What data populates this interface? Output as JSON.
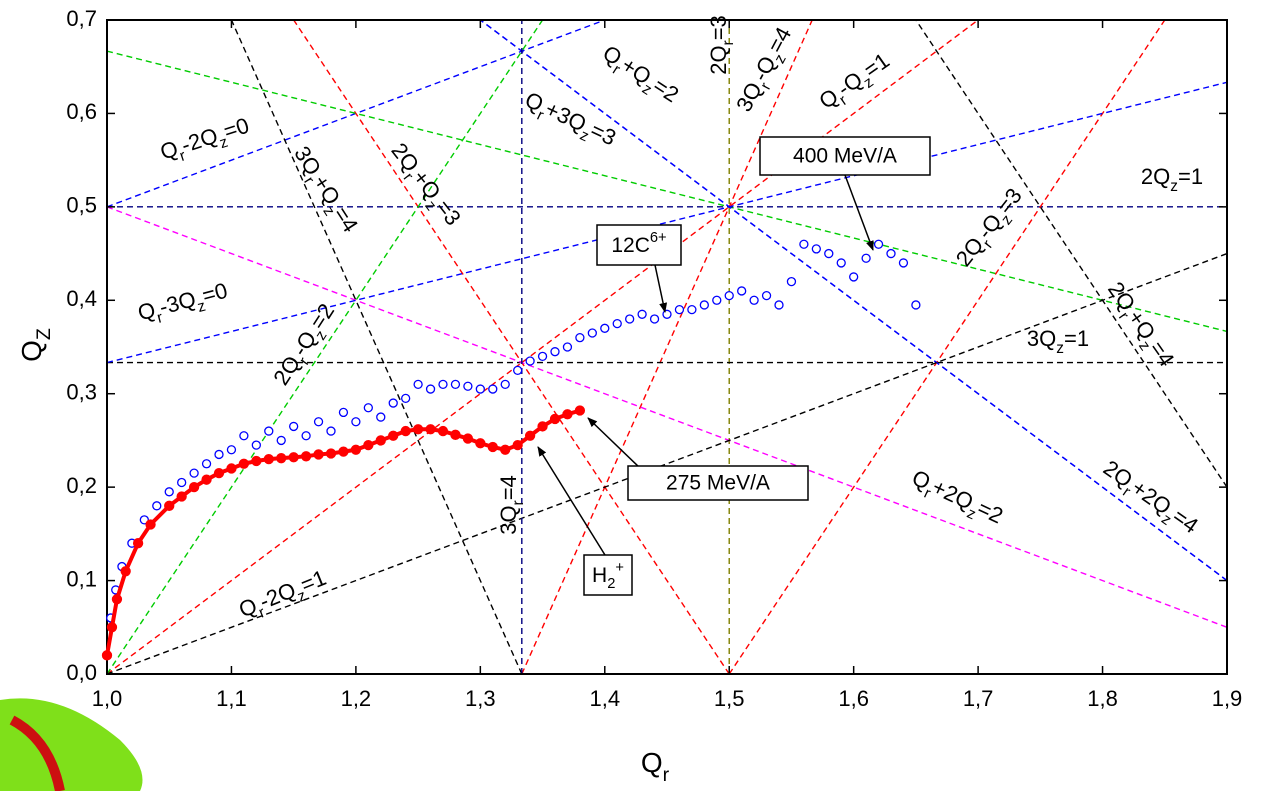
{
  "chart_data": {
    "type": "scatter",
    "x_label": "Qr",
    "y_label": "QZ",
    "xlim": [
      1.0,
      1.9
    ],
    "ylim": [
      0,
      0.7
    ],
    "xticks": [
      {
        "value": 1.0,
        "label": "1,0"
      },
      {
        "value": 1.1,
        "label": "1,1"
      },
      {
        "value": 1.2,
        "label": "1,2"
      },
      {
        "value": 1.3,
        "label": "1,3"
      },
      {
        "value": 1.4,
        "label": "1,4"
      },
      {
        "value": 1.5,
        "label": "1,5"
      },
      {
        "value": 1.6,
        "label": "1,6"
      },
      {
        "value": 1.7,
        "label": "1,7"
      },
      {
        "value": 1.8,
        "label": "1,8"
      },
      {
        "value": 1.9,
        "label": "1,9"
      }
    ],
    "yticks": [
      {
        "value": 0,
        "label": "0,0"
      },
      {
        "value": 0.1,
        "label": "0,1"
      },
      {
        "value": 0.2,
        "label": "0,2"
      },
      {
        "value": 0.3,
        "label": "0,3"
      },
      {
        "value": 0.4,
        "label": "0,4"
      },
      {
        "value": 0.5,
        "label": "0,5"
      },
      {
        "value": 0.6,
        "label": "0,6"
      },
      {
        "value": 0.7,
        "label": "0,7"
      }
    ],
    "series": [
      {
        "color": "#0000ff",
        "marker": "open",
        "x": [
          1.0,
          1.003,
          1.007,
          1.012,
          1.02,
          1.03,
          1.04,
          1.05,
          1.06,
          1.07,
          1.08,
          1.09,
          1.1,
          1.11,
          1.12,
          1.13,
          1.14,
          1.15,
          1.16,
          1.17,
          1.18,
          1.19,
          1.2,
          1.21,
          1.22,
          1.23,
          1.24,
          1.25,
          1.26,
          1.27,
          1.28,
          1.29,
          1.3,
          1.31,
          1.32,
          1.33,
          1.34,
          1.35,
          1.36,
          1.37,
          1.38,
          1.39,
          1.4,
          1.41,
          1.42,
          1.43,
          1.44,
          1.45,
          1.46,
          1.47,
          1.48,
          1.49,
          1.5,
          1.51,
          1.52,
          1.53,
          1.54,
          1.55,
          1.56,
          1.57,
          1.58,
          1.59,
          1.6,
          1.61,
          1.62,
          1.63,
          1.64,
          1.65
        ],
        "values": [
          0.02,
          0.06,
          0.09,
          0.115,
          0.14,
          0.165,
          0.18,
          0.195,
          0.205,
          0.215,
          0.225,
          0.235,
          0.24,
          0.255,
          0.245,
          0.26,
          0.25,
          0.265,
          0.255,
          0.27,
          0.26,
          0.28,
          0.27,
          0.285,
          0.275,
          0.29,
          0.295,
          0.31,
          0.305,
          0.31,
          0.31,
          0.308,
          0.305,
          0.305,
          0.31,
          0.325,
          0.335,
          0.34,
          0.345,
          0.35,
          0.36,
          0.365,
          0.37,
          0.375,
          0.38,
          0.385,
          0.38,
          0.385,
          0.39,
          0.39,
          0.395,
          0.4,
          0.405,
          0.41,
          0.4,
          0.405,
          0.395,
          0.42,
          0.46,
          0.455,
          0.45,
          0.44,
          0.425,
          0.445,
          0.46,
          0.45,
          0.44,
          0.395
        ]
      },
      {
        "color": "#ff0000",
        "marker": "filled",
        "x": [
          1.0,
          1.004,
          1.008,
          1.015,
          1.025,
          1.035,
          1.05,
          1.06,
          1.07,
          1.08,
          1.09,
          1.1,
          1.11,
          1.12,
          1.13,
          1.14,
          1.15,
          1.16,
          1.17,
          1.18,
          1.19,
          1.2,
          1.21,
          1.22,
          1.23,
          1.24,
          1.25,
          1.26,
          1.27,
          1.28,
          1.29,
          1.3,
          1.31,
          1.32,
          1.33,
          1.34,
          1.35,
          1.36,
          1.37,
          1.38
        ],
        "values": [
          0.02,
          0.05,
          0.08,
          0.11,
          0.14,
          0.16,
          0.18,
          0.19,
          0.2,
          0.208,
          0.215,
          0.22,
          0.225,
          0.228,
          0.23,
          0.231,
          0.232,
          0.233,
          0.235,
          0.236,
          0.238,
          0.24,
          0.245,
          0.25,
          0.255,
          0.26,
          0.262,
          0.262,
          0.26,
          0.256,
          0.252,
          0.247,
          0.243,
          0.24,
          0.245,
          0.255,
          0.265,
          0.273,
          0.278,
          0.282
        ]
      }
    ],
    "resonance_lines": [
      {
        "label": "Qr-2Qz=0",
        "qr": 1,
        "qz": -2,
        "n": 0,
        "color": "#0000ff"
      },
      {
        "label": "3Qr+Qz=4",
        "qr": 3,
        "qz": 1,
        "n": 4,
        "color": "#000000"
      },
      {
        "label": "2Qr+Qz=3",
        "qr": 2,
        "qz": 1,
        "n": 3,
        "color": "#ff0000"
      },
      {
        "label": "Qr+3Qz=3",
        "qr": 1,
        "qz": 3,
        "n": 3,
        "color": "#00cc00"
      },
      {
        "label": "Qr+Qz=2",
        "qr": 1,
        "qz": 1,
        "n": 2,
        "color": "#0000ff"
      },
      {
        "label": "2Qr=3",
        "qr": 2,
        "qz": 0,
        "n": 3,
        "color": "#808000"
      },
      {
        "label": "3Qr-Qz=4",
        "qr": 3,
        "qz": -1,
        "n": 4,
        "color": "#ff0000"
      },
      {
        "label": "Qr-Qz=1",
        "qr": 1,
        "qz": -1,
        "n": 1,
        "color": "#ff0000"
      },
      {
        "label": "2Qz=1",
        "qr": 0,
        "qz": 2,
        "n": 1,
        "color": "#000080"
      },
      {
        "label": "2Qr-Qz=3",
        "qr": 2,
        "qz": -1,
        "n": 3,
        "color": "#ff0000"
      },
      {
        "label": "2Qr+Qz=4",
        "qr": 2,
        "qz": 1,
        "n": 4,
        "color": "#000000"
      },
      {
        "label": "3Qz=1",
        "qr": 0,
        "qz": 3,
        "n": 1,
        "color": "#000000"
      },
      {
        "label": "2Qr+2Qz=4",
        "qr": 2,
        "qz": 2,
        "n": 4,
        "color": "#0000ff"
      },
      {
        "label": "Qr+2Qz=2",
        "qr": 1,
        "qz": 2,
        "n": 2,
        "color": "#ff00ff"
      },
      {
        "label": "Qr-3Qz=0",
        "qr": 1,
        "qz": -3,
        "n": 0,
        "color": "#0000ff"
      },
      {
        "label": "2Qr-Qz=2",
        "qr": 2,
        "qz": -1,
        "n": 2,
        "color": "#00cc00"
      },
      {
        "label": "Qr-2Qz=1",
        "qr": 1,
        "qz": -2,
        "n": 1,
        "color": "#000000"
      },
      {
        "label": "3Qr=4",
        "qr": 3,
        "qz": 0,
        "n": 4,
        "color": "#000080"
      }
    ],
    "annotations": [
      "400 MeV/A",
      "12C6+",
      "275 MeV/A",
      "H2+"
    ]
  }
}
